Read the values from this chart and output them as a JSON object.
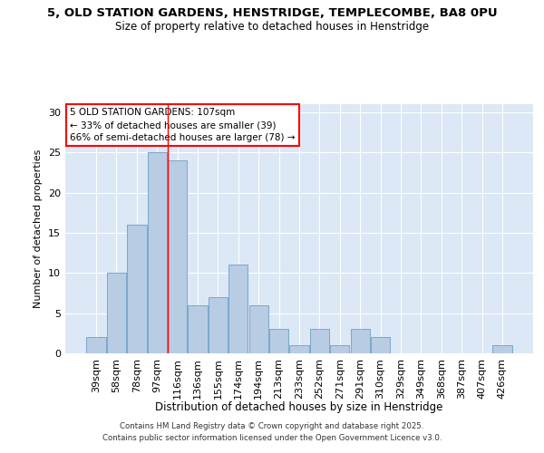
{
  "title_line1": "5, OLD STATION GARDENS, HENSTRIDGE, TEMPLECOMBE, BA8 0PU",
  "title_line2": "Size of property relative to detached houses in Henstridge",
  "xlabel": "Distribution of detached houses by size in Henstridge",
  "ylabel": "Number of detached properties",
  "categories": [
    "39sqm",
    "58sqm",
    "78sqm",
    "97sqm",
    "116sqm",
    "136sqm",
    "155sqm",
    "174sqm",
    "194sqm",
    "213sqm",
    "233sqm",
    "252sqm",
    "271sqm",
    "291sqm",
    "310sqm",
    "329sqm",
    "349sqm",
    "368sqm",
    "387sqm",
    "407sqm",
    "426sqm"
  ],
  "values": [
    2,
    10,
    16,
    25,
    24,
    6,
    7,
    11,
    6,
    3,
    1,
    3,
    1,
    3,
    2,
    0,
    0,
    0,
    0,
    0,
    1
  ],
  "bar_color": "#b8cce4",
  "bar_edge_color": "#7aa8cc",
  "background_color": "#dce8f5",
  "grid_color": "#ffffff",
  "annotation_line1": "5 OLD STATION GARDENS: 107sqm",
  "annotation_line2": "← 33% of detached houses are smaller (39)",
  "annotation_line3": "66% of semi-detached houses are larger (78) →",
  "ylim": [
    0,
    31
  ],
  "yticks": [
    0,
    5,
    10,
    15,
    20,
    25,
    30
  ],
  "footer_line1": "Contains HM Land Registry data © Crown copyright and database right 2025.",
  "footer_line2": "Contains public sector information licensed under the Open Government Licence v3.0."
}
